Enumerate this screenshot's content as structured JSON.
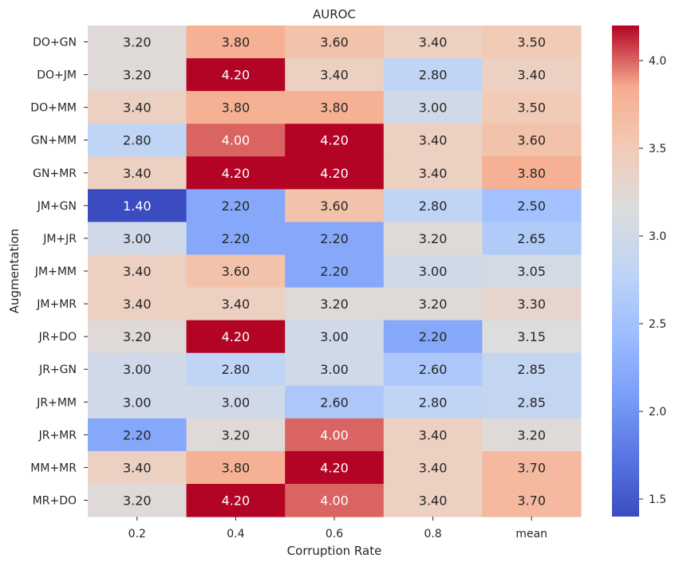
{
  "chart_data": {
    "type": "heatmap",
    "title": "AUROC",
    "xlabel": "Corruption Rate",
    "ylabel": "Augmentation",
    "colormap": "coolwarm",
    "color_range": [
      1.4,
      4.2
    ],
    "colorbar_ticks": [
      "1.5",
      "2.0",
      "2.5",
      "3.0",
      "3.5",
      "4.0"
    ],
    "x_categories": [
      "0.2",
      "0.4",
      "0.6",
      "0.8",
      "mean"
    ],
    "y_categories": [
      "DO+GN",
      "DO+JM",
      "DO+MM",
      "GN+MM",
      "GN+MR",
      "JM+GN",
      "JM+JR",
      "JM+MM",
      "JM+MR",
      "JR+DO",
      "JR+GN",
      "JR+MM",
      "JR+MR",
      "MM+MR",
      "MR+DO"
    ],
    "values": [
      [
        3.2,
        3.8,
        3.6,
        3.4,
        3.5
      ],
      [
        3.2,
        4.2,
        3.4,
        2.8,
        3.4
      ],
      [
        3.4,
        3.8,
        3.8,
        3.0,
        3.5
      ],
      [
        2.8,
        4.0,
        4.2,
        3.4,
        3.6
      ],
      [
        3.4,
        4.2,
        4.2,
        3.4,
        3.8
      ],
      [
        1.4,
        2.2,
        3.6,
        2.8,
        2.5
      ],
      [
        3.0,
        2.2,
        2.2,
        3.2,
        2.65
      ],
      [
        3.4,
        3.6,
        2.2,
        3.0,
        3.05
      ],
      [
        3.4,
        3.4,
        3.2,
        3.2,
        3.3
      ],
      [
        3.2,
        4.2,
        3.0,
        2.2,
        3.15
      ],
      [
        3.0,
        2.8,
        3.0,
        2.6,
        2.85
      ],
      [
        3.0,
        3.0,
        2.6,
        2.8,
        2.85
      ],
      [
        2.2,
        3.2,
        4.0,
        3.4,
        3.2
      ],
      [
        3.4,
        3.8,
        4.2,
        3.4,
        3.7
      ],
      [
        3.2,
        4.2,
        4.0,
        3.4,
        3.7
      ]
    ],
    "annotations": [
      [
        "3.20",
        "3.80",
        "3.60",
        "3.40",
        "3.50"
      ],
      [
        "3.20",
        "4.20",
        "3.40",
        "2.80",
        "3.40"
      ],
      [
        "3.40",
        "3.80",
        "3.80",
        "3.00",
        "3.50"
      ],
      [
        "2.80",
        "4.00",
        "4.20",
        "3.40",
        "3.60"
      ],
      [
        "3.40",
        "4.20",
        "4.20",
        "3.40",
        "3.80"
      ],
      [
        "1.40",
        "2.20",
        "3.60",
        "2.80",
        "2.50"
      ],
      [
        "3.00",
        "2.20",
        "2.20",
        "3.20",
        "2.65"
      ],
      [
        "3.40",
        "3.60",
        "2.20",
        "3.00",
        "3.05"
      ],
      [
        "3.40",
        "3.40",
        "3.20",
        "3.20",
        "3.30"
      ],
      [
        "3.20",
        "4.20",
        "3.00",
        "2.20",
        "3.15"
      ],
      [
        "3.00",
        "2.80",
        "3.00",
        "2.60",
        "2.85"
      ],
      [
        "3.00",
        "3.00",
        "2.60",
        "2.80",
        "2.85"
      ],
      [
        "2.20",
        "3.20",
        "4.00",
        "3.40",
        "3.20"
      ],
      [
        "3.40",
        "3.80",
        "4.20",
        "3.40",
        "3.70"
      ],
      [
        "3.20",
        "4.20",
        "4.00",
        "3.40",
        "3.70"
      ]
    ]
  }
}
